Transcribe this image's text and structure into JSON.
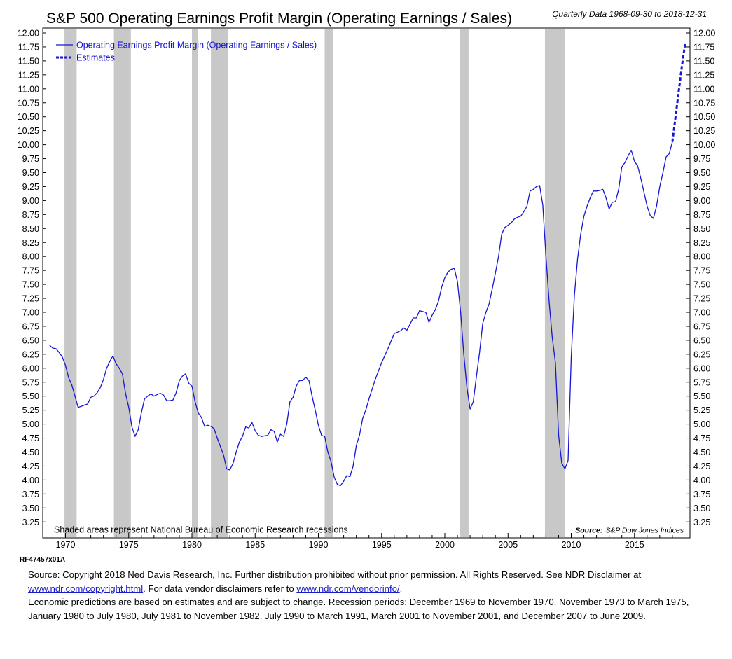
{
  "title": "S&P 500 Operating Earnings Profit Margin (Operating Earnings / Sales)",
  "subtitle": "Quarterly Data 1968-09-30 to 2018-12-31",
  "legend": {
    "actual": "Operating Earnings Profit Margin (Operating Earnings / Sales)",
    "estimates": "Estimates"
  },
  "shading_note": "Shaded areas represent National Bureau of Economic Research recessions",
  "source_label": "Source:",
  "source_value": "S&P Dow Jones Indices",
  "chart_code": "RF47457x01A",
  "colors": {
    "line": "#1515d6",
    "recession": "#c8c8c8"
  },
  "footer": {
    "line1_prefix": "Source: Copyright 2018 Ned Davis Research, Inc. Further distribution prohibited without prior permission. All Rights Reserved. See NDR Disclaimer at",
    "link1": "www.ndr.com/copyright.html",
    "mid": ".  For data vendor disclaimers refer to",
    "link2": "www.ndr.com/vendorinfo/",
    "end": ".",
    "para2": "Economic predictions are based on estimates and are subject to change. Recession periods: December 1969 to November 1970, November 1973 to March 1975, January 1980 to July 1980, July 1981 to November 1982, July 1990 to March 1991, March 2001 to November 2001, and December 2007 to June 2009."
  },
  "chart_data": {
    "type": "line",
    "title": "S&P 500 Operating Earnings Profit Margin (Operating Earnings / Sales)",
    "x_range": [
      1968.6,
      2019.2
    ],
    "ylim": [
      3.0,
      12.1
    ],
    "x_ticks": [
      "1970",
      "1975",
      "1980",
      "1985",
      "1990",
      "1995",
      "2000",
      "2005",
      "2010",
      "2015"
    ],
    "y_ticks": [
      "12.00",
      "11.75",
      "11.50",
      "11.25",
      "11.00",
      "10.75",
      "10.50",
      "10.25",
      "10.00",
      "9.75",
      "9.50",
      "9.25",
      "9.00",
      "8.75",
      "8.50",
      "8.25",
      "8.00",
      "7.75",
      "7.50",
      "7.25",
      "7.00",
      "6.75",
      "6.50",
      "6.25",
      "6.00",
      "5.75",
      "5.50",
      "5.25",
      "5.00",
      "4.75",
      "4.50",
      "4.25",
      "4.00",
      "3.75",
      "3.50",
      "3.25"
    ],
    "recessions": [
      [
        1969.92,
        1970.88
      ],
      [
        1973.83,
        1975.17
      ],
      [
        1980.0,
        1980.5
      ],
      [
        1981.5,
        1982.88
      ],
      [
        1990.5,
        1991.17
      ],
      [
        2001.17,
        2001.88
      ],
      [
        2007.92,
        2009.5
      ]
    ],
    "series": [
      {
        "name": "Operating Earnings Profit Margin (Operating Earnings / Sales)",
        "style": "solid",
        "x": [
          1968.75,
          1969.0,
          1969.25,
          1969.5,
          1969.75,
          1970.0,
          1970.25,
          1970.5,
          1970.75,
          1971.0,
          1971.25,
          1971.5,
          1971.75,
          1972.0,
          1972.25,
          1972.5,
          1972.75,
          1973.0,
          1973.25,
          1973.5,
          1973.75,
          1974.0,
          1974.25,
          1974.5,
          1974.75,
          1975.0,
          1975.25,
          1975.5,
          1975.75,
          1976.0,
          1976.25,
          1976.5,
          1976.75,
          1977.0,
          1977.25,
          1977.5,
          1977.75,
          1978.0,
          1978.25,
          1978.5,
          1978.75,
          1979.0,
          1979.25,
          1979.5,
          1979.75,
          1980.0,
          1980.25,
          1980.5,
          1980.75,
          1981.0,
          1981.25,
          1981.5,
          1981.75,
          1982.0,
          1982.25,
          1982.5,
          1982.75,
          1983.0,
          1983.25,
          1983.5,
          1983.75,
          1984.0,
          1984.25,
          1984.5,
          1984.75,
          1985.0,
          1985.25,
          1985.5,
          1985.75,
          1986.0,
          1986.25,
          1986.5,
          1986.75,
          1987.0,
          1987.25,
          1987.5,
          1987.75,
          1988.0,
          1988.25,
          1988.5,
          1988.75,
          1989.0,
          1989.25,
          1989.5,
          1989.75,
          1990.0,
          1990.25,
          1990.5,
          1990.75,
          1991.0,
          1991.25,
          1991.5,
          1991.75,
          1992.0,
          1992.25,
          1992.5,
          1992.75,
          1993.0,
          1993.25,
          1993.5,
          1993.75,
          1994.0,
          1994.5,
          1995.0,
          1995.5,
          1996.0,
          1996.5,
          1996.75,
          1997.0,
          1997.25,
          1997.5,
          1997.75,
          1998.0,
          1998.5,
          1998.75,
          1999.0,
          1999.25,
          1999.5,
          1999.75,
          2000.0,
          2000.25,
          2000.5,
          2000.75,
          2001.0,
          2001.25,
          2001.5,
          2001.75,
          2002.0,
          2002.25,
          2002.5,
          2002.75,
          2003.0,
          2003.25,
          2003.5,
          2003.75,
          2004.0,
          2004.25,
          2004.5,
          2004.75,
          2005.0,
          2005.25,
          2005.5,
          2005.75,
          2006.0,
          2006.25,
          2006.5,
          2006.75,
          2007.0,
          2007.25,
          2007.5,
          2007.75,
          2008.0,
          2008.25,
          2008.5,
          2008.75,
          2009.0,
          2009.25,
          2009.5,
          2009.75,
          2010.0,
          2010.25,
          2010.5,
          2010.75,
          2011.0,
          2011.25,
          2011.5,
          2011.75,
          2012.0,
          2012.25,
          2012.5,
          2012.75,
          2013.0,
          2013.25,
          2013.5,
          2013.75,
          2014.0,
          2014.25,
          2014.5,
          2014.75,
          2015.0,
          2015.25,
          2015.5,
          2015.75,
          2016.0,
          2016.25,
          2016.5,
          2016.75,
          2017.0,
          2017.25,
          2017.5,
          2017.75,
          2018.0
        ],
        "values": [
          6.41,
          6.36,
          6.35,
          6.28,
          6.2,
          6.05,
          5.83,
          5.7,
          5.5,
          5.3,
          5.32,
          5.34,
          5.36,
          5.48,
          5.5,
          5.56,
          5.65,
          5.8,
          6.0,
          6.12,
          6.22,
          6.08,
          6.0,
          5.9,
          5.55,
          5.3,
          4.95,
          4.78,
          4.9,
          5.2,
          5.45,
          5.5,
          5.54,
          5.5,
          5.53,
          5.55,
          5.52,
          5.42,
          5.42,
          5.43,
          5.56,
          5.78,
          5.86,
          5.9,
          5.73,
          5.68,
          5.4,
          5.2,
          5.12,
          4.96,
          4.98,
          4.96,
          4.92,
          4.75,
          4.6,
          4.45,
          4.2,
          4.18,
          4.3,
          4.5,
          4.68,
          4.78,
          4.95,
          4.93,
          5.03,
          4.88,
          4.8,
          4.78,
          4.79,
          4.8,
          4.9,
          4.87,
          4.68,
          4.82,
          4.78,
          5.0,
          5.4,
          5.48,
          5.68,
          5.78,
          5.78,
          5.84,
          5.78,
          5.5,
          5.25,
          4.98,
          4.8,
          4.78,
          4.5,
          4.33,
          4.05,
          3.92,
          3.9,
          3.98,
          4.08,
          4.06,
          4.25,
          4.62,
          4.8,
          5.1,
          5.25,
          5.45,
          5.8,
          6.1,
          6.35,
          6.62,
          6.67,
          6.72,
          6.68,
          6.79,
          6.9,
          6.9,
          7.03,
          7.0,
          6.82,
          6.95,
          7.05,
          7.2,
          7.45,
          7.62,
          7.72,
          7.77,
          7.79,
          7.55,
          7.0,
          6.25,
          5.65,
          5.27,
          5.4,
          5.85,
          6.28,
          6.8,
          7.0,
          7.15,
          7.42,
          7.7,
          8.0,
          8.4,
          8.52,
          8.56,
          8.6,
          8.67,
          8.7,
          8.72,
          8.8,
          8.9,
          9.17,
          9.2,
          9.25,
          9.27,
          8.92,
          8.0,
          7.2,
          6.55,
          6.1,
          4.8,
          4.3,
          4.2,
          4.35,
          6.2,
          7.3,
          7.95,
          8.4,
          8.72,
          8.9,
          9.05,
          9.17,
          9.17,
          9.18,
          9.2,
          9.05,
          8.85,
          8.97,
          8.98,
          9.2,
          9.6,
          9.68,
          9.8,
          9.9,
          9.7,
          9.62,
          9.4,
          9.15,
          8.9,
          8.73,
          8.68,
          8.9,
          9.25,
          9.5,
          9.78,
          9.84,
          10.05
        ]
      },
      {
        "name": "Estimates",
        "style": "dashed",
        "x": [
          2018.0,
          2018.25,
          2018.5,
          2018.75,
          2019.0
        ],
        "values": [
          10.05,
          10.5,
          10.95,
          11.4,
          11.8
        ]
      }
    ]
  }
}
